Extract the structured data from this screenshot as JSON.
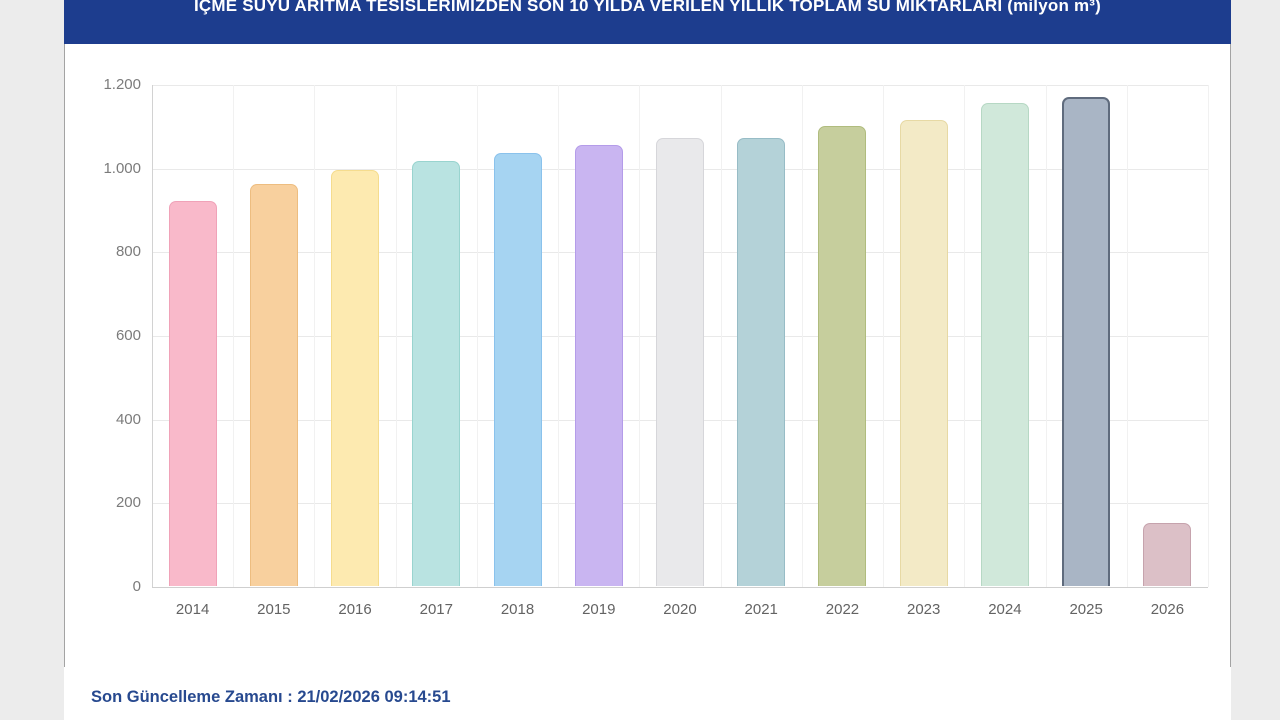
{
  "header": {
    "background": "#1d3d8e"
  },
  "chart_data": {
    "type": "bar",
    "title": "İÇME SUYU ARITMA TESİSLERİMİZDEN SON 10 YILDA VERİLEN YILLIK TOPLAM SU MİKTARLARI (milyon m³)",
    "categories": [
      "2014",
      "2015",
      "2016",
      "2017",
      "2018",
      "2019",
      "2020",
      "2021",
      "2022",
      "2023",
      "2024",
      "2025",
      "2026"
    ],
    "values": [
      920,
      960,
      995,
      1015,
      1035,
      1055,
      1070,
      1070,
      1100,
      1115,
      1155,
      1170,
      150
    ],
    "bar_colors": [
      "#f9b9ca",
      "#f8d09e",
      "#fdeab0",
      "#b9e3e1",
      "#a6d4f2",
      "#c9b5f1",
      "#e9e9eb",
      "#b4d2d8",
      "#c6ce9d",
      "#f3eac6",
      "#d0e8da",
      "#a9b5c5",
      "#dcc0c7"
    ],
    "bar_border_colors": [
      "#f0a2b8",
      "#edbd80",
      "#f5dc8e",
      "#99d4cf",
      "#8ac2ec",
      "#b49ce9",
      "#d6d6da",
      "#97bcc6",
      "#b0bc7e",
      "#e7d9a4",
      "#b6d8c4",
      "#5f6b7d",
      "#c6a3ad"
    ],
    "highlight_index": 11,
    "ylim": [
      0,
      1200
    ],
    "ytick_step": 200,
    "ytick_labels": [
      "0",
      "200",
      "400",
      "600",
      "800",
      "1.000",
      "1.200"
    ],
    "grid": true,
    "legend": false,
    "xlabel": "",
    "ylabel": "",
    "unit": "milyon m³"
  },
  "footer": {
    "label": "Son Güncelleme Zamanı",
    "separator": " : ",
    "value": "21/02/2026 09:14:51"
  }
}
